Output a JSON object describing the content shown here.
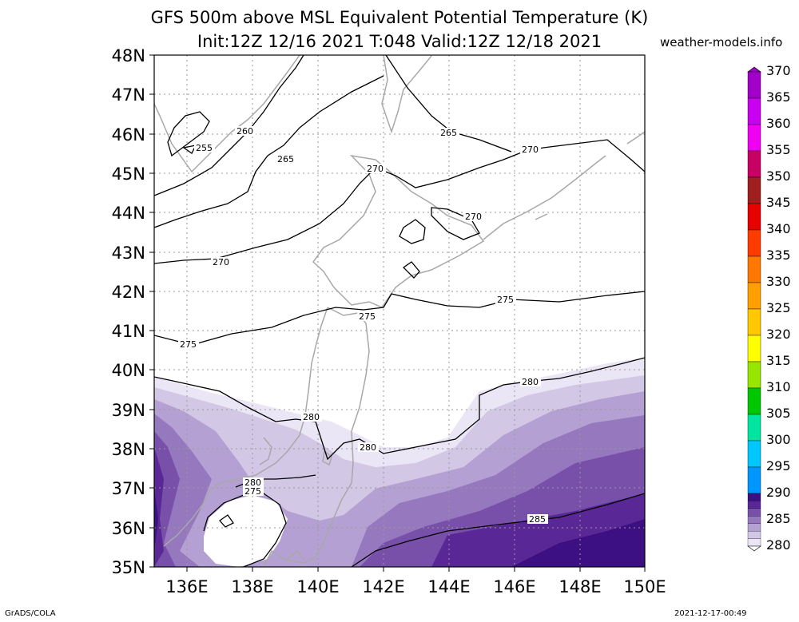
{
  "header": {
    "title_line1": "GFS 500m above MSL Equivalent Potential Temperature (K)",
    "title_line2": "Init:12Z 12/16 2021 T:048 Valid:12Z 12/18 2021",
    "site": "weather-models.info"
  },
  "footer": {
    "left": "GrADS/COLA",
    "right": "2021-12-17-00:49"
  },
  "map": {
    "lat_labels": [
      "48N",
      "47N",
      "46N",
      "45N",
      "44N",
      "43N",
      "42N",
      "41N",
      "40N",
      "39N",
      "38N",
      "37N",
      "36N",
      "35N"
    ],
    "lon_labels": [
      "136E",
      "138E",
      "140E",
      "142E",
      "144E",
      "146E",
      "148E",
      "150E"
    ],
    "contour_labels": [
      {
        "text": "265"
      },
      {
        "text": "260"
      },
      {
        "text": "255"
      },
      {
        "text": "265"
      },
      {
        "text": "270"
      },
      {
        "text": "270"
      },
      {
        "text": "270"
      },
      {
        "text": "270"
      },
      {
        "text": "275"
      },
      {
        "text": "275"
      },
      {
        "text": "275"
      },
      {
        "text": "280"
      },
      {
        "text": "280"
      },
      {
        "text": "280"
      },
      {
        "text": "280"
      },
      {
        "text": "275"
      },
      {
        "text": "285"
      }
    ],
    "colors": {
      "coast": "#a8a8a8",
      "grid": "#9a9a9a",
      "contour": "#000000"
    }
  },
  "colorbar": {
    "labels": [
      "370",
      "365",
      "360",
      "355",
      "350",
      "345",
      "340",
      "335",
      "330",
      "325",
      "320",
      "315",
      "310",
      "305",
      "300",
      "295",
      "290",
      "285",
      "280"
    ],
    "colors": [
      "#a000c8",
      "#c800f0",
      "#f000f0",
      "#c80064",
      "#a01e1e",
      "#e60000",
      "#ff3c00",
      "#ff7800",
      "#ffa000",
      "#ffc800",
      "#ffff00",
      "#96e600",
      "#00c800",
      "#00e6a0",
      "#00c8ff",
      "#0096ff",
      "#1e3cff",
      "#0000c8",
      "#1e0096"
    ],
    "purple_colors": [
      "#3c0f82",
      "#5a2896",
      "#7850aa",
      "#9678be",
      "#b4a0d2",
      "#d2c8e6",
      "#ebe6f5"
    ]
  }
}
